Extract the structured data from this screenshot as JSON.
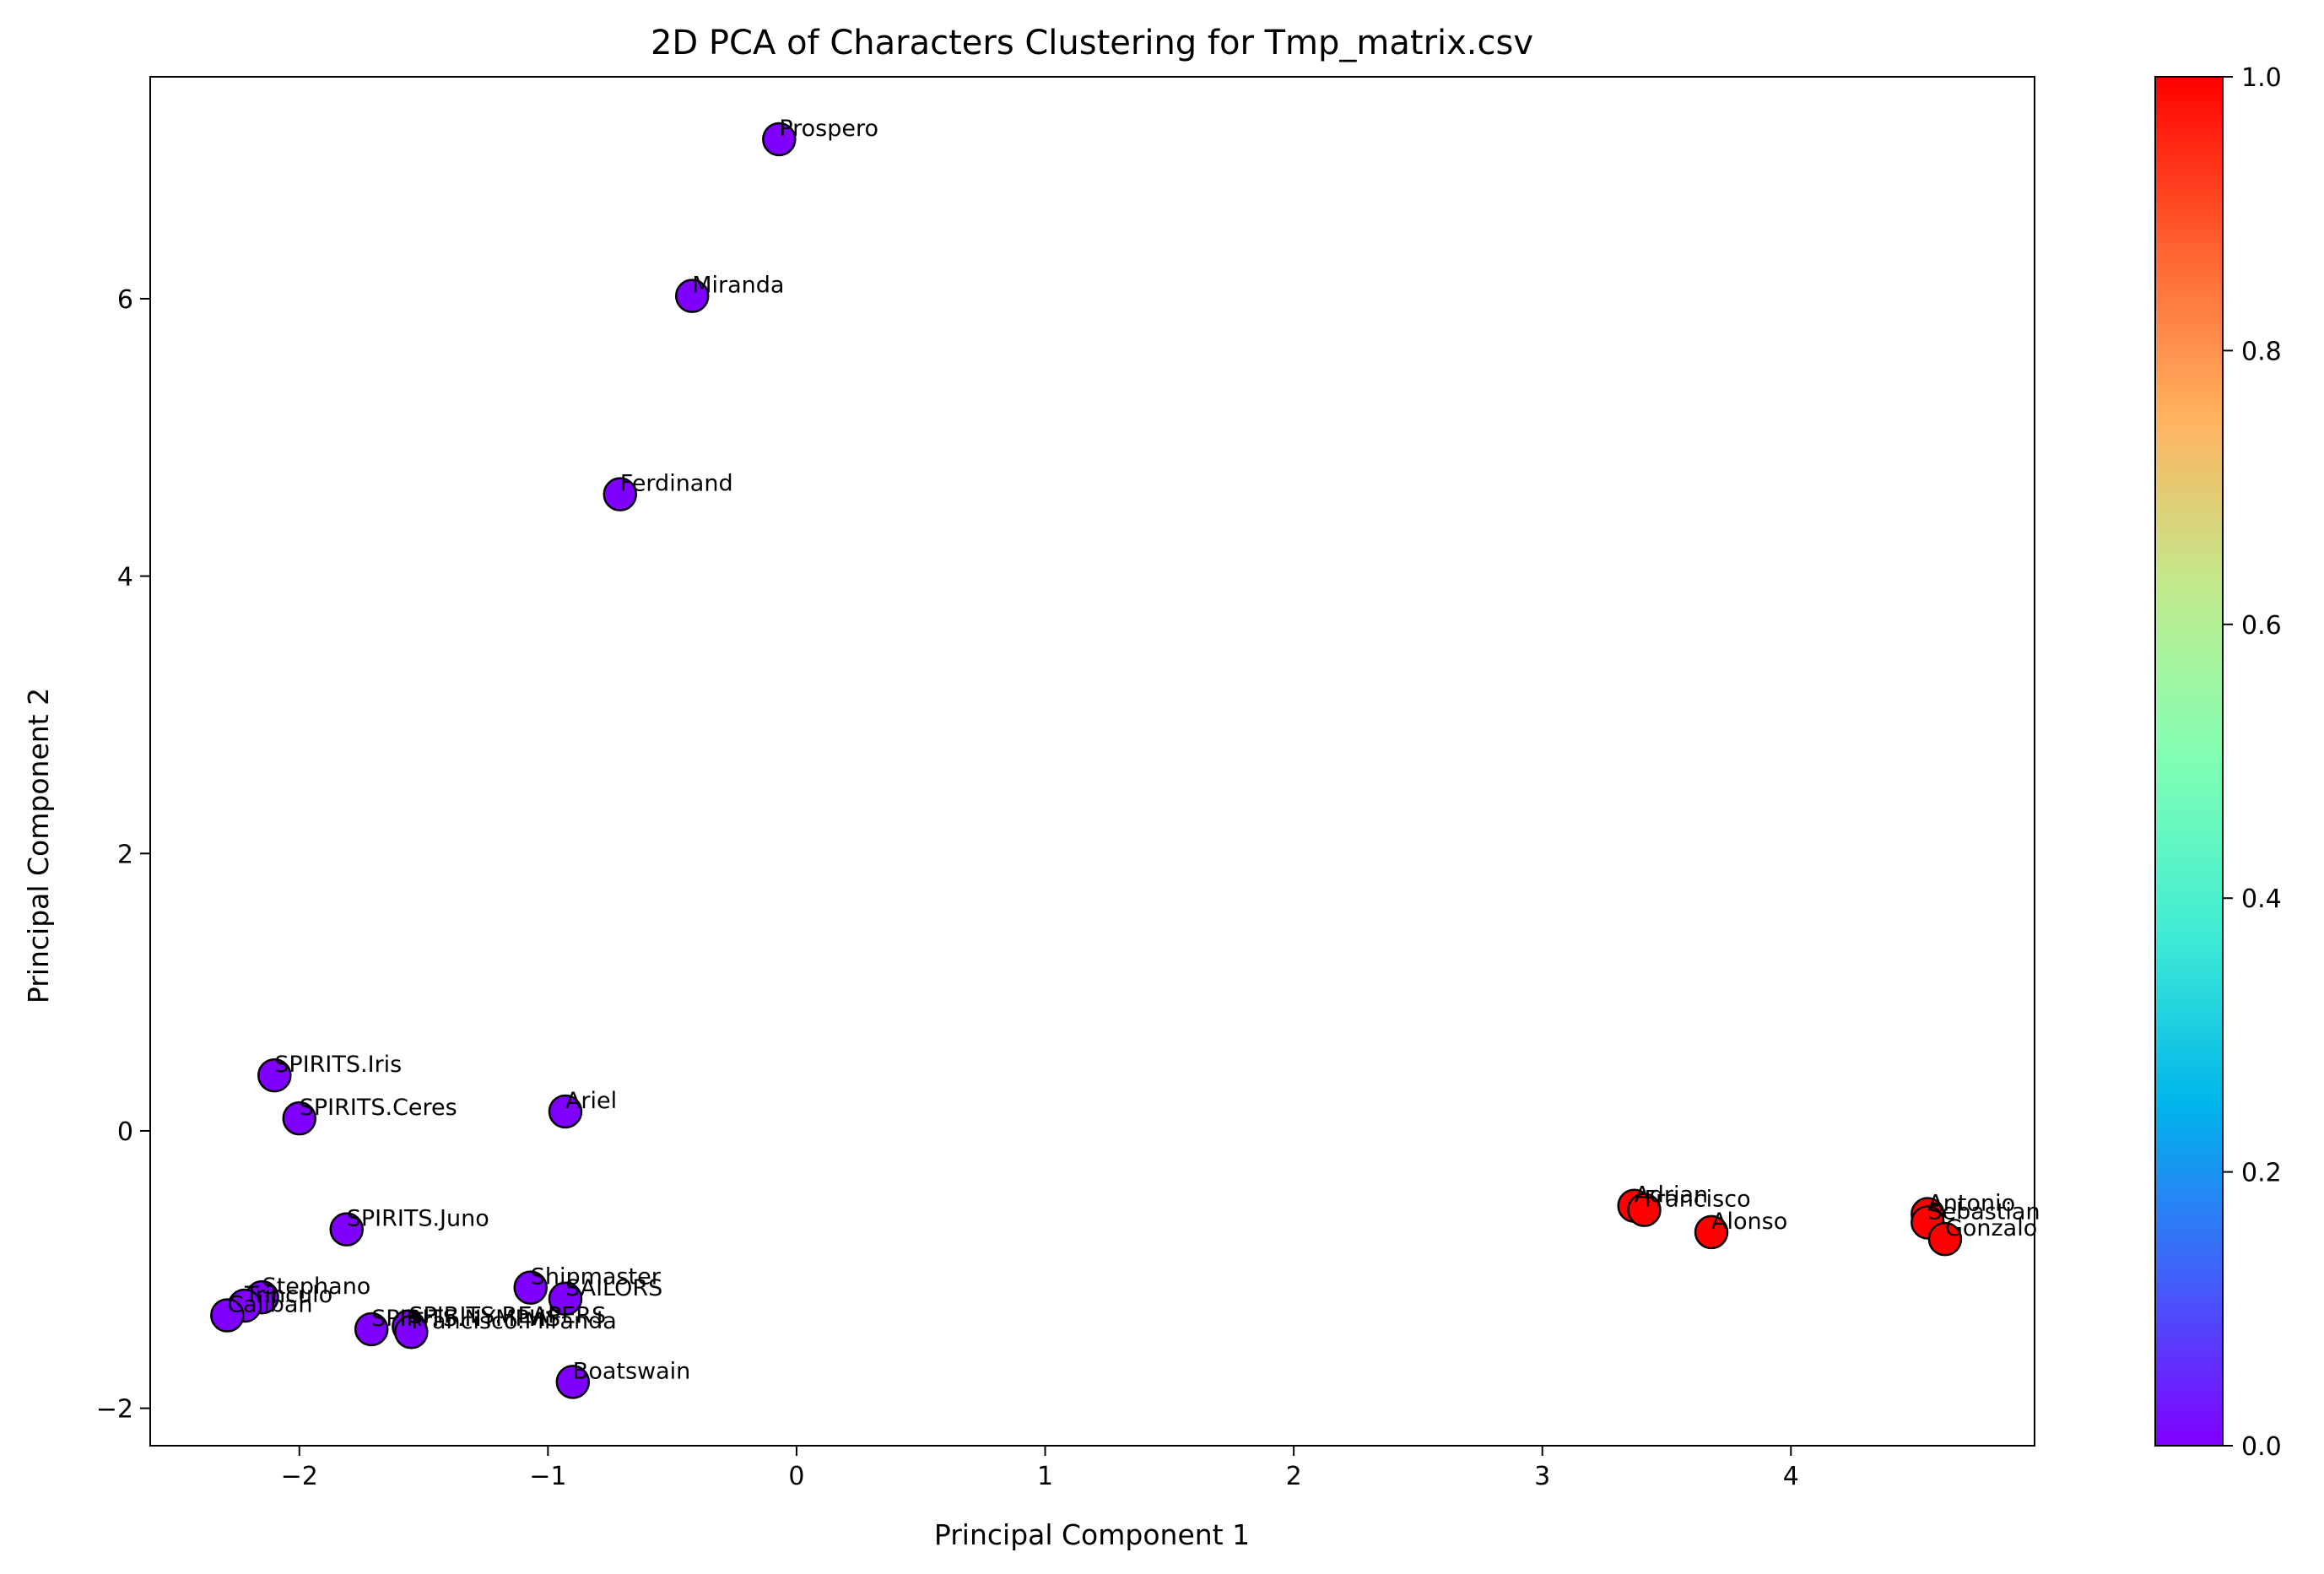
{
  "chart_data": {
    "type": "scatter",
    "title": "2D PCA of Characters Clustering for Tmp_matrix.csv",
    "xlabel": "Principal Component 1",
    "ylabel": "Principal Component 2",
    "xlim": [
      -2.6,
      4.98
    ],
    "ylim": [
      -2.27,
      7.6
    ],
    "xticks": [
      -2,
      -1,
      0,
      1,
      2,
      3,
      4
    ],
    "yticks": [
      -2,
      0,
      2,
      4,
      6
    ],
    "grid": false,
    "marker_edge_color": "#000000",
    "colormap": "rainbow",
    "colorbar": {
      "range": [
        0.0,
        1.0
      ],
      "ticks": [
        0.0,
        0.2,
        0.4,
        0.6,
        0.8,
        1.0
      ],
      "stops": [
        "#8000ff",
        "#4062fa",
        "#00b5eb",
        "#40ecd4",
        "#80ffb4",
        "#c0eb8d",
        "#ffb360",
        "#ff6230",
        "#ff0000"
      ]
    },
    "cluster_colors": {
      "0": "#8000ff",
      "1": "#ff0000"
    },
    "points": [
      {
        "label": "Prospero",
        "x": -0.07,
        "y": 7.15,
        "cluster": 0
      },
      {
        "label": "Miranda",
        "x": -0.42,
        "y": 6.02,
        "cluster": 0
      },
      {
        "label": "Ferdinand",
        "x": -0.71,
        "y": 4.59,
        "cluster": 0
      },
      {
        "label": "SPIRITS.Iris",
        "x": -2.1,
        "y": 0.4,
        "cluster": 0
      },
      {
        "label": "SPIRITS.Ceres",
        "x": -2.0,
        "y": 0.09,
        "cluster": 0
      },
      {
        "label": "Ariel",
        "x": -0.93,
        "y": 0.14,
        "cluster": 0
      },
      {
        "label": "SPIRITS.Juno",
        "x": -1.81,
        "y": -0.71,
        "cluster": 0
      },
      {
        "label": "Shipmaster",
        "x": -1.07,
        "y": -1.13,
        "cluster": 0
      },
      {
        "label": "SAILORS",
        "x": -0.93,
        "y": -1.21,
        "cluster": 0
      },
      {
        "label": "Stephano",
        "x": -2.15,
        "y": -1.2,
        "cluster": 0
      },
      {
        "label": "Trinculo",
        "x": -2.22,
        "y": -1.26,
        "cluster": 0
      },
      {
        "label": "Caliban",
        "x": -2.29,
        "y": -1.33,
        "cluster": 0
      },
      {
        "label": "SPIRITS.REAPERS",
        "x": -1.56,
        "y": -1.41,
        "cluster": 0
      },
      {
        "label": "SPIRITS.NYMPHS",
        "x": -1.71,
        "y": -1.43,
        "cluster": 0
      },
      {
        "label": "Francisco.Miranda",
        "x": -1.55,
        "y": -1.45,
        "cluster": 0
      },
      {
        "label": "Boatswain",
        "x": -0.9,
        "y": -1.81,
        "cluster": 0
      },
      {
        "label": "Adrian",
        "x": 3.37,
        "y": -0.54,
        "cluster": 1
      },
      {
        "label": "Francisco",
        "x": 3.41,
        "y": -0.57,
        "cluster": 1
      },
      {
        "label": "Alonso",
        "x": 3.68,
        "y": -0.73,
        "cluster": 1
      },
      {
        "label": "Antonio",
        "x": 4.55,
        "y": -0.6,
        "cluster": 1
      },
      {
        "label": "Sebastian",
        "x": 4.55,
        "y": -0.66,
        "cluster": 1
      },
      {
        "label": "Gonzalo",
        "x": 4.62,
        "y": -0.78,
        "cluster": 1
      }
    ]
  }
}
